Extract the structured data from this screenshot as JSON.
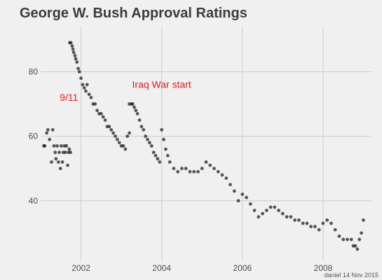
{
  "chart_data": {
    "type": "scatter",
    "title": "George W. Bush Approval Ratings",
    "xlabel": "",
    "ylabel": "",
    "x_ticks": [
      2002,
      2004,
      2006,
      2008
    ],
    "y_ticks": [
      40,
      60,
      80
    ],
    "xlim": [
      2001.0,
      2009.2
    ],
    "ylim": [
      21.5,
      94
    ],
    "grid": true,
    "legend": "none",
    "annotations": [
      {
        "text": "9/11",
        "x": 2001.7,
        "y": 71
      },
      {
        "text": "Iraq War start",
        "x": 2004.0,
        "y": 75
      }
    ],
    "colors": {
      "background": "#f0f0f0",
      "grid": "#d2d2d2",
      "points": "#1a1a1a",
      "annotation": "#e41a1c"
    },
    "credit": "daniel 14 Nov 2015",
    "series": [
      {
        "x": [
          2001.08,
          2001.1,
          2001.15,
          2001.18,
          2001.22,
          2001.27,
          2001.3,
          2001.33,
          2001.36,
          2001.38,
          2001.41,
          2001.44,
          2001.46,
          2001.49,
          2001.51,
          2001.54,
          2001.56,
          2001.59,
          2001.61,
          2001.64,
          2001.67,
          2001.69,
          2001.71,
          2001.74,
          2001.72,
          2001.75,
          2001.78,
          2001.8,
          2001.82,
          2001.85,
          2001.87,
          2001.9,
          2001.93,
          2001.96,
          2002.0,
          2002.04,
          2002.08,
          2002.12,
          2002.15,
          2002.2,
          2002.25,
          2002.3,
          2002.35,
          2002.4,
          2002.45,
          2002.5,
          2002.55,
          2002.6,
          2002.65,
          2002.7,
          2002.75,
          2002.8,
          2002.85,
          2002.9,
          2002.95,
          2003.0,
          2003.05,
          2003.1,
          2003.15,
          2003.2,
          2003.2,
          2003.25,
          2003.28,
          2003.32,
          2003.36,
          2003.4,
          2003.45,
          2003.5,
          2003.55,
          2003.6,
          2003.65,
          2003.7,
          2003.75,
          2003.8,
          2003.85,
          2003.9,
          2003.95,
          2004.0,
          2004.05,
          2004.1,
          2004.15,
          2004.2,
          2004.3,
          2004.4,
          2004.5,
          2004.6,
          2004.7,
          2004.8,
          2004.9,
          2005.0,
          2005.1,
          2005.2,
          2005.3,
          2005.4,
          2005.5,
          2005.6,
          2005.7,
          2005.8,
          2005.9,
          2006.0,
          2006.1,
          2006.2,
          2006.3,
          2006.4,
          2006.5,
          2006.6,
          2006.7,
          2006.8,
          2006.9,
          2007.0,
          2007.1,
          2007.2,
          2007.3,
          2007.4,
          2007.5,
          2007.6,
          2007.7,
          2007.8,
          2007.9,
          2008.0,
          2008.1,
          2008.2,
          2008.3,
          2008.4,
          2008.5,
          2008.6,
          2008.7,
          2008.75,
          2008.8,
          2008.85,
          2008.9,
          2008.95,
          2009.0
        ],
        "y": [
          57,
          57,
          61,
          62,
          59,
          52,
          62,
          57,
          55,
          53,
          57,
          52,
          55,
          50,
          57,
          52,
          55,
          57,
          55,
          57,
          51,
          55,
          56,
          55,
          89,
          89,
          88,
          87,
          86,
          85,
          84,
          83,
          81,
          80,
          78,
          76,
          75,
          74,
          76,
          73,
          72,
          70,
          70,
          68,
          67,
          67,
          66,
          65,
          63,
          63,
          62,
          61,
          60,
          59,
          58,
          57,
          57,
          56,
          60,
          61,
          70,
          70,
          70,
          69,
          68,
          67,
          65,
          63,
          62,
          60,
          59,
          58,
          57,
          55,
          54,
          53,
          52,
          62,
          59,
          56,
          54,
          52,
          50,
          49,
          50,
          50,
          49,
          49,
          49,
          50,
          52,
          51,
          50,
          49,
          48,
          47,
          45,
          43,
          40,
          42,
          41,
          39,
          37,
          35,
          36,
          37,
          38,
          38,
          37,
          36,
          35,
          35,
          34,
          34,
          33,
          33,
          32,
          32,
          31,
          33,
          34,
          33,
          31,
          29,
          28,
          28,
          28,
          26,
          26,
          25,
          28,
          30,
          34
        ]
      }
    ]
  }
}
